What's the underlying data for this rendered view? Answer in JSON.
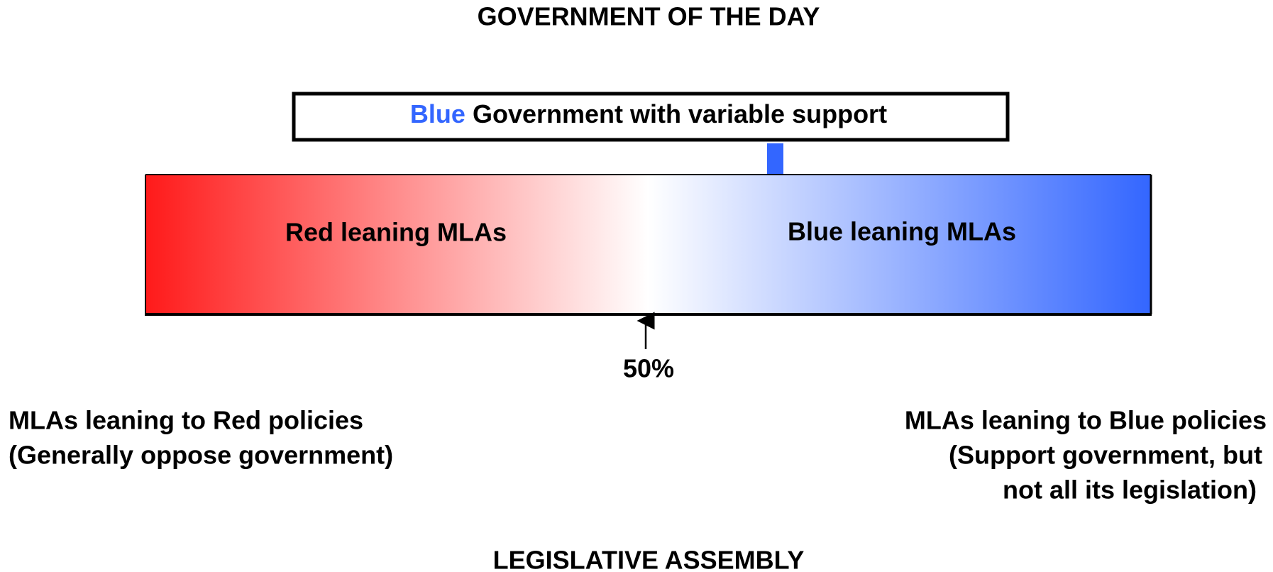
{
  "header": {
    "title": "GOVERNMENT OF THE DAY"
  },
  "government": {
    "party": "Blue",
    "label": "Government with variable support"
  },
  "assembly_bar": {
    "left_label": "Red leaning MLAs",
    "right_label": "Blue leaning MLAs",
    "midpoint_label": "50%"
  },
  "left_note": {
    "lines": [
      "MLAs leaning to Red policies",
      "(Generally oppose government)"
    ]
  },
  "right_note": {
    "lines": [
      "MLAs leaning to Blue policies",
      "(Support government, but",
      "not all its legislation)"
    ]
  },
  "footer": {
    "title": "LEGISLATIVE ASSEMBLY"
  }
}
